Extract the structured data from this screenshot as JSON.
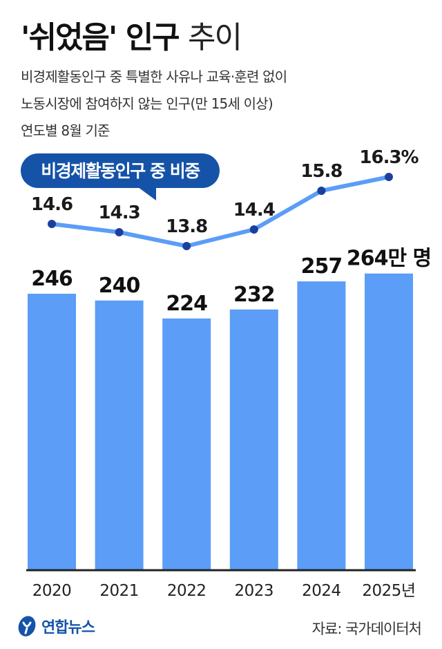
{
  "header": {
    "title_bold": "'쉬었음' 인구",
    "title_light": "추이",
    "subtitle_lines": [
      "비경제활동인구 중 특별한 사유나 교육·훈련 없이",
      "노동시장에 참여하지 않는 인구(만 15세 이상)",
      "연도별 8월 기준"
    ]
  },
  "legend_bubble": "비경제활동인구 중 비중",
  "chart_data": {
    "type": "bar",
    "categories": [
      "2020",
      "2021",
      "2022",
      "2023",
      "2024",
      "2025년"
    ],
    "series": [
      {
        "type": "bar",
        "values": [
          246,
          240,
          224,
          232,
          257,
          264
        ],
        "labels": [
          "246",
          "240",
          "224",
          "232",
          "257",
          "264만 명"
        ],
        "color": "#5b9df7"
      },
      {
        "name": "비경제활동인구 중 비중",
        "type": "line",
        "values": [
          14.6,
          14.3,
          13.8,
          14.4,
          15.8,
          16.3
        ],
        "labels": [
          "14.6",
          "14.3",
          "13.8",
          "14.4",
          "15.8",
          "16.3%"
        ],
        "color": "#5b9df7",
        "marker_color": "#1b3f9c"
      }
    ],
    "bar_axis_baseline": 0,
    "line_axis_range": [
      11,
      17.5
    ],
    "grid": false
  },
  "colors": {
    "bubble": "#1553a8",
    "baseline": "#222222"
  },
  "footer": {
    "logo_text": "연합뉴스",
    "source": "자료: 국가데이터처"
  }
}
